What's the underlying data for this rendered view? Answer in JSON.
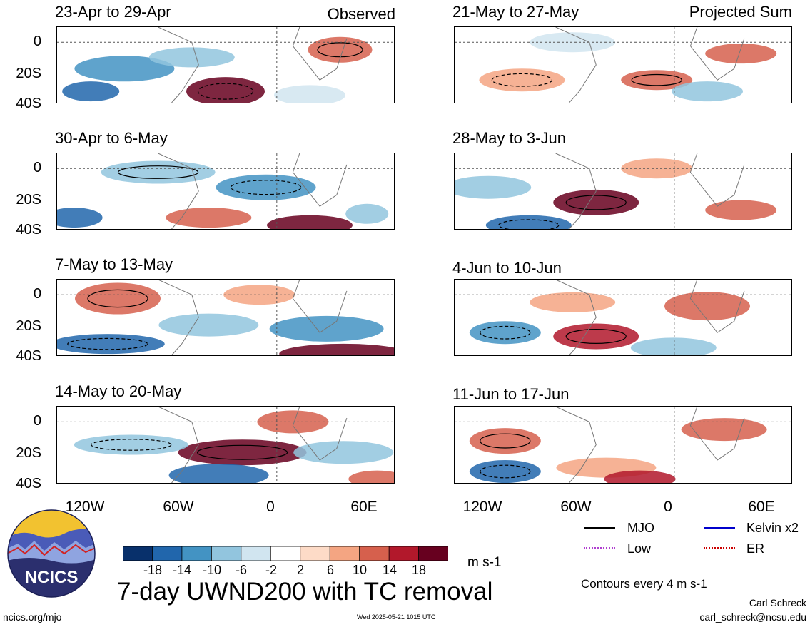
{
  "left_column": {
    "tag": "Observed",
    "panels": [
      {
        "title": "23-Apr to 29-Apr"
      },
      {
        "title": "30-Apr to 6-May"
      },
      {
        "title": "7-May to 13-May"
      },
      {
        "title": "14-May to 20-May"
      }
    ]
  },
  "right_column": {
    "tag": "Projected Sum",
    "panels": [
      {
        "title": "21-May to 27-May"
      },
      {
        "title": "28-May to 3-Jun"
      },
      {
        "title": "4-Jun to 10-Jun"
      },
      {
        "title": "11-Jun to 17-Jun"
      }
    ]
  },
  "axes": {
    "lat_labels": [
      "0",
      "20S",
      "40S"
    ],
    "lon_labels": [
      "120W",
      "60W",
      "0",
      "60E"
    ],
    "lat_range": [
      -40,
      10
    ],
    "lon_range": [
      -150,
      80
    ]
  },
  "colorbar": {
    "labels": [
      "-18",
      "-14",
      "-10",
      "-6",
      "-2",
      "2",
      "6",
      "10",
      "14",
      "18"
    ],
    "colors": [
      "#08306b",
      "#2166ac",
      "#4393c3",
      "#92c5de",
      "#d1e5f0",
      "#ffffff",
      "#fddbc7",
      "#f4a582",
      "#d6604d",
      "#b2182b",
      "#67001f"
    ],
    "units": "m s-1"
  },
  "legend": {
    "items": [
      {
        "label": "MJO",
        "color": "#000000"
      },
      {
        "label": "Kelvin x2",
        "color": "#0000cc"
      },
      {
        "label": "Low",
        "color": "#b040d0"
      },
      {
        "label": "ER",
        "color": "#cc0000"
      }
    ],
    "contour_note": "Contours every 4 m s-1"
  },
  "logo": {
    "text": "NCICS"
  },
  "main_title": "7-day UWND200 with TC removal",
  "footer": {
    "left": "ncics.org/mjo",
    "center": "Wed 2025-05-21 1015 UTC",
    "author": "Carl Schreck",
    "email": "carl_schreck@ncsu.edu"
  }
}
